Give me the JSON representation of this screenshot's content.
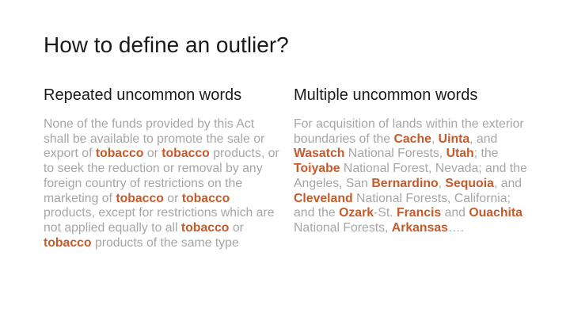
{
  "slide": {
    "title": "How to define an outlier?",
    "accent_color": "#c55a2b",
    "body_text_color": "#a6a6a6",
    "left_column": {
      "heading": "Repeated uncommon words",
      "segments": [
        {
          "text": "None of the funds provided by this Act shall be available to promote the sale or export of ",
          "hl": false
        },
        {
          "text": "tobacco",
          "hl": true
        },
        {
          "text": " or ",
          "hl": false
        },
        {
          "text": "tobacco",
          "hl": true
        },
        {
          "text": " products, or to seek the reduction or removal by any foreign country of restrictions on the marketing of ",
          "hl": false
        },
        {
          "text": "tobacco",
          "hl": true
        },
        {
          "text": " or ",
          "hl": false
        },
        {
          "text": "tobacco",
          "hl": true
        },
        {
          "text": " products, except for restrictions which are not applied equally to all ",
          "hl": false
        },
        {
          "text": "tobacco",
          "hl": true
        },
        {
          "text": " or ",
          "hl": false
        },
        {
          "text": "tobacco",
          "hl": true
        },
        {
          "text": " products of the same type",
          "hl": false
        }
      ]
    },
    "right_column": {
      "heading": "Multiple uncommon words",
      "segments": [
        {
          "text": "For acquisition of lands within the exterior boundaries of the ",
          "hl": false
        },
        {
          "text": "Cache",
          "hl": true
        },
        {
          "text": ", ",
          "hl": false
        },
        {
          "text": "Uinta",
          "hl": true
        },
        {
          "text": ", and ",
          "hl": false
        },
        {
          "text": "Wasatch",
          "hl": true
        },
        {
          "text": " National Forests, ",
          "hl": false
        },
        {
          "text": "Utah",
          "hl": true
        },
        {
          "text": "; the ",
          "hl": false
        },
        {
          "text": "Toiyabe",
          "hl": true
        },
        {
          "text": " National Forest, Nevada; and the Angeles, San ",
          "hl": false
        },
        {
          "text": "Bernardino",
          "hl": true
        },
        {
          "text": ", ",
          "hl": false
        },
        {
          "text": "Sequoia",
          "hl": true
        },
        {
          "text": ", and ",
          "hl": false
        },
        {
          "text": "Cleveland",
          "hl": true
        },
        {
          "text": " National Forests, California; and the ",
          "hl": false
        },
        {
          "text": "Ozark",
          "hl": true
        },
        {
          "text": "-St. ",
          "hl": false
        },
        {
          "text": "Francis",
          "hl": true
        },
        {
          "text": " and ",
          "hl": false
        },
        {
          "text": "Ouachita",
          "hl": true
        },
        {
          "text": " National Forests, ",
          "hl": false
        },
        {
          "text": "Arkansas",
          "hl": true
        },
        {
          "text": "….",
          "hl": false
        }
      ]
    }
  }
}
